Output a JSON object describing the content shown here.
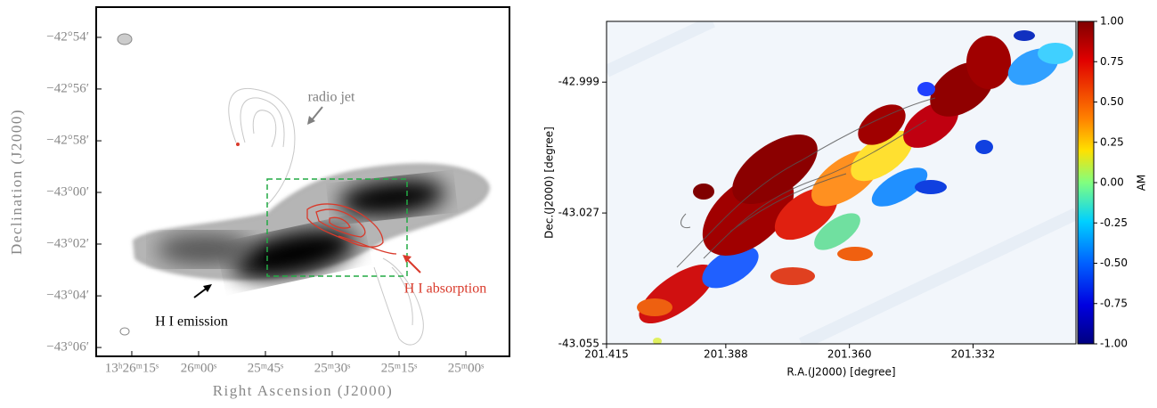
{
  "chart_data": [
    {
      "type": "image",
      "xlabel": "Right Ascension (J2000)",
      "ylabel": "Declination (J2000)",
      "xlim": [
        201.5958,
        201.2092
      ],
      "ylim": [
        -43.1057,
        -42.8805
      ],
      "xticks": [
        {
          "value": 201.5625,
          "label": "13ʰ26ᵐ15ˢ"
        },
        {
          "value": 201.5,
          "label": "26ᵐ00ˢ"
        },
        {
          "value": 201.4375,
          "label": "25ᵐ45ˢ"
        },
        {
          "value": 201.375,
          "label": "25ᵐ30ˢ"
        },
        {
          "value": 201.3125,
          "label": "25ᵐ15ˢ"
        },
        {
          "value": 201.25,
          "label": "25ᵐ00ˢ"
        }
      ],
      "yticks": [
        {
          "value": -42.9,
          "label": "−42°54′"
        },
        {
          "value": -42.9333,
          "label": "−42°56′"
        },
        {
          "value": -42.9667,
          "label": "−42°58′"
        },
        {
          "value": -43.0,
          "label": "−43°00′"
        },
        {
          "value": -43.0333,
          "label": "−43°02′"
        },
        {
          "value": -43.0667,
          "label": "−43°04′"
        },
        {
          "value": -43.1,
          "label": "−43°06′"
        }
      ],
      "annotations": [
        "radio jet",
        "H I absorption",
        "H I emission"
      ]
    },
    {
      "type": "image",
      "xlabel": "R.A.(J2000) [degree]",
      "ylabel": "Dec.(J2000) [degree]",
      "xlim": [
        201.415,
        201.3087
      ],
      "ylim": [
        -43.055,
        -42.986
      ],
      "xticks": [
        201.415,
        201.388,
        {
          "value": 201.36,
          "label": "201.360"
        },
        201.332
      ],
      "yticks": [
        -42.999,
        -43.027,
        -43.055
      ],
      "colorbar": {
        "label": "AM",
        "lim": [
          -1,
          1
        ],
        "ticks": [
          {
            "value": 1,
            "label": "1.00"
          },
          {
            "value": 0.75,
            "label": "0.75"
          },
          {
            "value": 0.5,
            "label": "0.50"
          },
          {
            "value": 0.25,
            "label": "0.25"
          },
          {
            "value": 0,
            "label": "0.00"
          },
          {
            "value": -0.25,
            "label": "-0.25"
          },
          {
            "value": -0.5,
            "label": "-0.50"
          },
          {
            "value": -0.75,
            "label": "-0.75"
          },
          {
            "value": -1,
            "label": "-1.00"
          }
        ]
      }
    }
  ]
}
